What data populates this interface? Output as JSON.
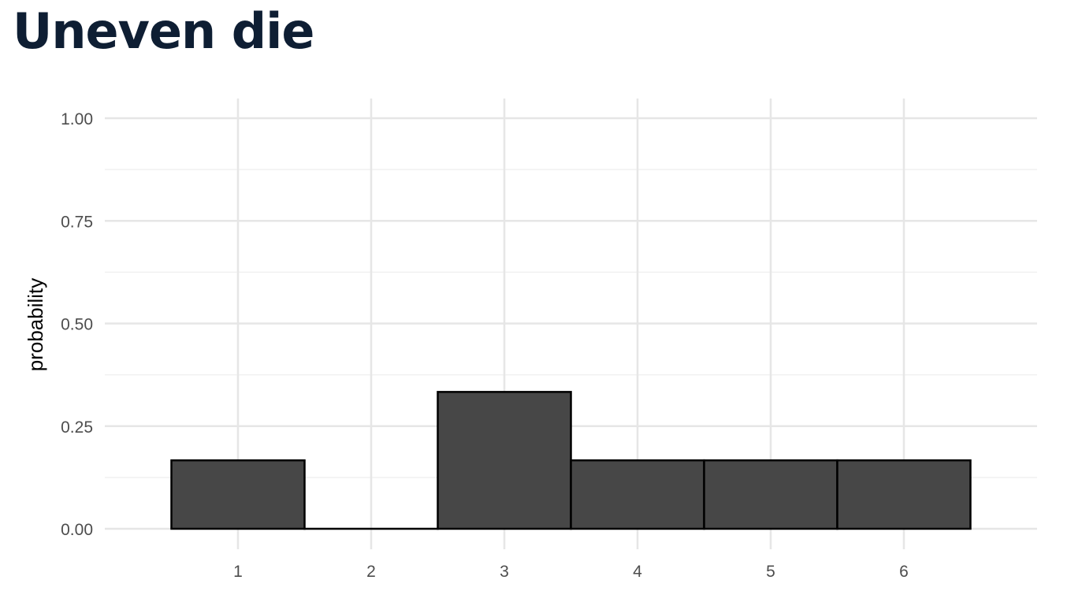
{
  "page": {
    "title": "Uneven die"
  },
  "chart_data": {
    "type": "bar",
    "title": "Uneven die",
    "xlabel": "",
    "ylabel": "probability",
    "categories": [
      "1",
      "2",
      "3",
      "4",
      "5",
      "6"
    ],
    "values": [
      0.1667,
      0,
      0.3333,
      0.1667,
      0.1667,
      0.1667
    ],
    "ylim": [
      0,
      1
    ],
    "yticks": [
      0,
      0.25,
      0.5,
      0.75,
      1
    ],
    "ytick_labels": [
      "0.00",
      "0.25",
      "0.50",
      "0.75",
      "1.00"
    ],
    "xlim": [
      0,
      7
    ],
    "grid": true,
    "legend": "none",
    "colors": {
      "bar_fill": "#474747",
      "bar_stroke": "#000000",
      "grid_major": "#e6e6e6",
      "grid_minor": "#f0f0f0",
      "tick_text": "#4d4d4d",
      "title": "#0e1e33"
    }
  }
}
